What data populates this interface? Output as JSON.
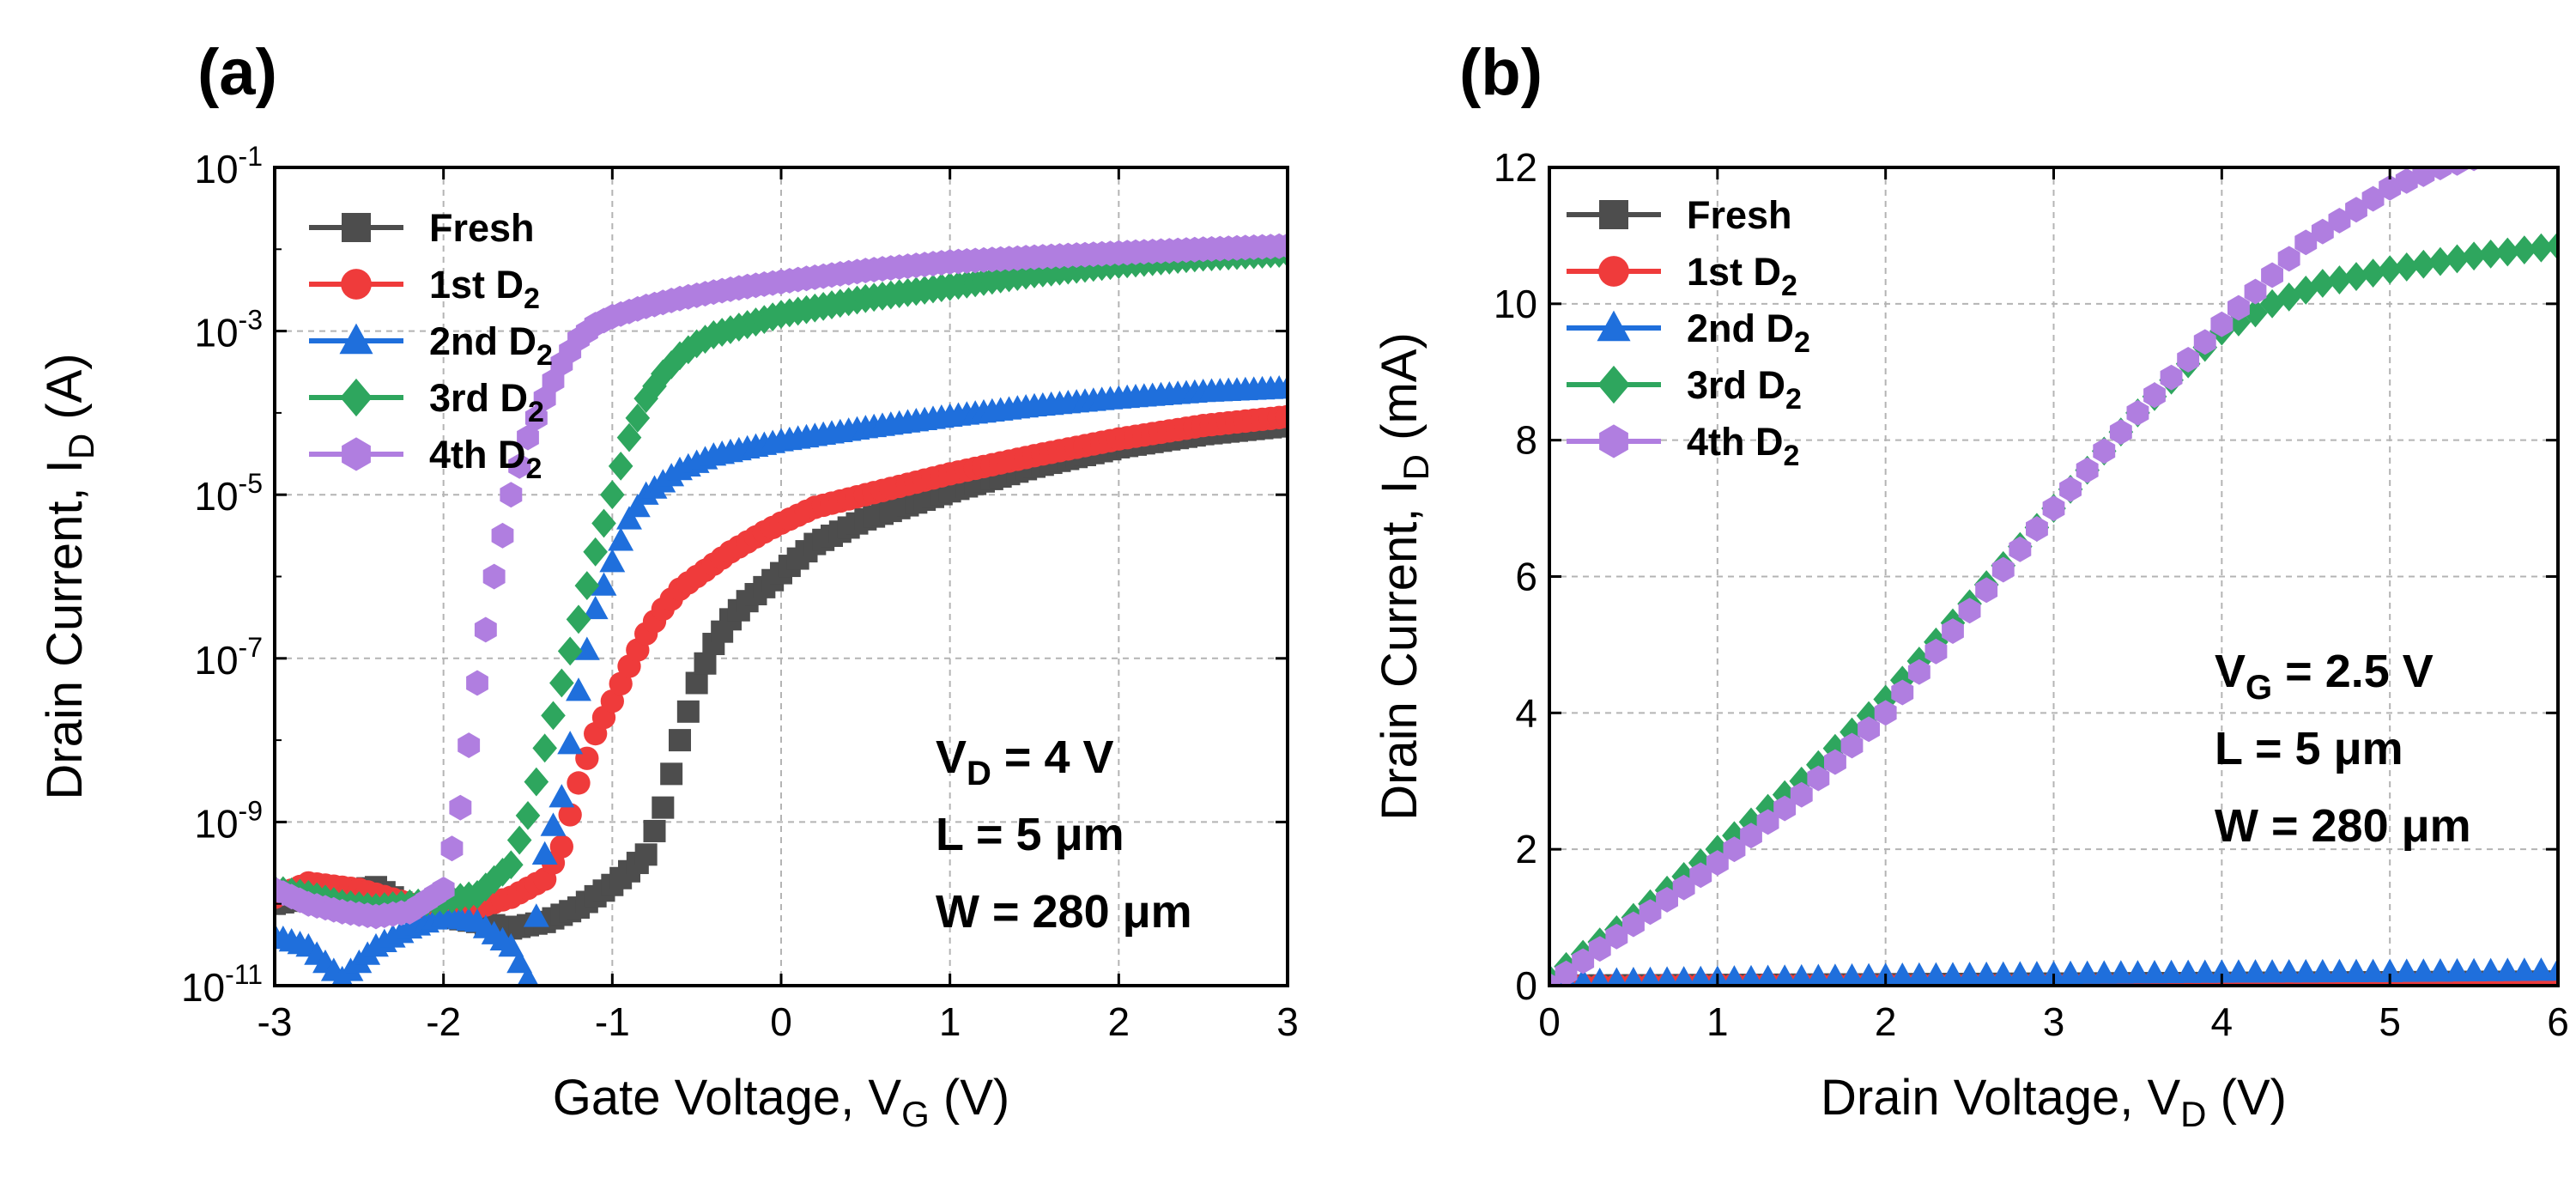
{
  "figure_labels": {
    "a": "(a)",
    "b": "(b)"
  },
  "chart_data": [
    {
      "id": "a",
      "type": "scatter",
      "title": "(a)",
      "xscale": "linear",
      "yscale": "log",
      "xlim": [
        -3,
        3
      ],
      "ylim": [
        1e-11,
        0.1
      ],
      "xticks": [
        -3,
        -2,
        -1,
        0,
        1,
        2,
        3
      ],
      "xtick_labels": [
        "-3",
        "-2",
        "-1",
        "0",
        "1",
        "2",
        "3"
      ],
      "yticks": [
        1e-11,
        1e-09,
        1e-07,
        1e-05,
        0.001,
        0.1
      ],
      "ytick_labels": [
        {
          "base": "10",
          "exp": "-11"
        },
        {
          "base": "10",
          "exp": "-9"
        },
        {
          "base": "10",
          "exp": "-7"
        },
        {
          "base": "10",
          "exp": "-5"
        },
        {
          "base": "10",
          "exp": "-3"
        },
        {
          "base": "10",
          "exp": "-1"
        }
      ],
      "xlabel": {
        "text": "Gate Voltage, V",
        "sub": "G",
        "unit": " (V)"
      },
      "ylabel": {
        "text": "Drain Current, I",
        "sub": "D",
        "unit": " (A)"
      },
      "grid": true,
      "legend_position": "top-left",
      "annotations": [
        {
          "main": "V",
          "sub": "D",
          "rest": " = 4 V"
        },
        {
          "main": "L = 5 μm",
          "sub": "",
          "rest": ""
        },
        {
          "main": "W = 280 μm",
          "sub": "",
          "rest": ""
        }
      ],
      "series": [
        {
          "name": "Fresh",
          "label": "Fresh",
          "sub": "",
          "color": "#4d4d4d",
          "marker": "square",
          "x": [
            -3.0,
            -2.6,
            -2.4,
            -2.2,
            -2.0,
            -1.8,
            -1.6,
            -1.4,
            -1.2,
            -1.0,
            -0.9,
            -0.8,
            -0.7,
            -0.6,
            -0.5,
            -0.4,
            -0.3,
            -0.2,
            0.0,
            0.2,
            0.5,
            1.0,
            1.5,
            2.0,
            2.5,
            3.0
          ],
          "y": [
            1e-10,
            1.4e-10,
            1.6e-10,
            9e-11,
            7e-11,
            6e-11,
            5e-11,
            6e-11,
            9e-11,
            1.7e-10,
            2.5e-10,
            4e-10,
            1.5e-09,
            1e-08,
            5e-08,
            1.5e-07,
            3e-07,
            5e-07,
            1.1e-06,
            2.5e-06,
            5e-06,
            1.1e-05,
            2.2e-05,
            3.8e-05,
            5.5e-05,
            7e-05
          ]
        },
        {
          "name": "1st D2",
          "label": "1st D",
          "sub": "2",
          "color": "#ef3b3b",
          "marker": "circle",
          "x": [
            -3.0,
            -2.8,
            -2.5,
            -2.2,
            -2.0,
            -1.8,
            -1.6,
            -1.4,
            -1.3,
            -1.2,
            -1.1,
            -1.0,
            -0.9,
            -0.8,
            -0.7,
            -0.6,
            -0.5,
            -0.3,
            -0.1,
            0.0,
            0.2,
            0.5,
            1.0,
            1.5,
            2.0,
            2.5,
            3.0
          ],
          "y": [
            1.2e-10,
            1.8e-10,
            1.5e-10,
            1e-10,
            8e-11,
            9e-11,
            1.2e-10,
            2e-10,
            5e-10,
            3e-09,
            1.2e-08,
            3e-08,
            8e-08,
            2e-07,
            4e-07,
            7e-07,
            1e-06,
            2e-06,
            3.5e-06,
            4.5e-06,
            7e-06,
            1e-05,
            1.8e-05,
            3e-05,
            4.8e-05,
            7e-05,
            9e-05
          ]
        },
        {
          "name": "2nd D2",
          "label": "2nd D",
          "sub": "2",
          "color": "#1f6fdc",
          "marker": "triangle",
          "x": [
            -3.0,
            -2.8,
            -2.6,
            -2.4,
            -2.2,
            -2.0,
            -1.8,
            -1.6,
            -1.5,
            -1.4,
            -1.3,
            -1.2,
            -1.1,
            -1.0,
            -0.9,
            -0.8,
            -0.6,
            -0.4,
            0.0,
            0.5,
            1.0,
            1.5,
            2.0,
            2.5,
            3.0
          ],
          "y": [
            4e-11,
            3e-11,
            1.2e-11,
            3e-11,
            5e-11,
            7e-11,
            6e-11,
            3e-11,
            1.2e-11,
            4e-10,
            2e-09,
            4e-08,
            4e-07,
            1.5e-06,
            5e-06,
            1e-05,
            2e-05,
            3e-05,
            4.5e-05,
            6.5e-05,
            9e-05,
            0.00012,
            0.00015,
            0.00018,
            0.0002
          ]
        },
        {
          "name": "3rd D2",
          "label": "3rd D",
          "sub": "2",
          "color": "#2ea65e",
          "marker": "diamond",
          "x": [
            -3.0,
            -2.8,
            -2.6,
            -2.4,
            -2.2,
            -2.0,
            -1.8,
            -1.6,
            -1.5,
            -1.4,
            -1.3,
            -1.2,
            -1.1,
            -1.0,
            -0.9,
            -0.8,
            -0.7,
            -0.6,
            -0.5,
            -0.4,
            -0.2,
            0.0,
            0.5,
            1.0,
            1.5,
            2.0,
            2.5,
            3.0
          ],
          "y": [
            1.5e-10,
            1.3e-10,
            1e-10,
            9e-11,
            1e-10,
            1.1e-10,
            1.3e-10,
            3e-10,
            1.2e-09,
            8e-09,
            5e-08,
            3e-07,
            2e-06,
            1e-05,
            5e-05,
            0.00015,
            0.0003,
            0.0005,
            0.0007,
            0.0009,
            0.0012,
            0.0016,
            0.0025,
            0.0035,
            0.005,
            0.0065,
            0.008,
            0.009
          ]
        },
        {
          "name": "4th D2",
          "label": "4th D",
          "sub": "2",
          "color": "#b07ee0",
          "marker": "hexagon",
          "x": [
            -3.0,
            -2.8,
            -2.6,
            -2.4,
            -2.2,
            -2.0,
            -1.9,
            -1.8,
            -1.7,
            -1.6,
            -1.5,
            -1.4,
            -1.3,
            -1.2,
            -1.1,
            -1.0,
            -0.8,
            -0.6,
            -0.4,
            -0.2,
            0.0,
            0.5,
            1.0,
            1.5,
            2.0,
            2.5,
            3.0
          ],
          "y": [
            1.5e-10,
            1e-10,
            8e-11,
            7e-11,
            8e-11,
            1.5e-10,
            1.5e-09,
            5e-08,
            1e-06,
            1e-05,
            5e-05,
            0.00015,
            0.0004,
            0.0008,
            0.0012,
            0.0015,
            0.002,
            0.0025,
            0.003,
            0.0035,
            0.004,
            0.0055,
            0.007,
            0.008,
            0.009,
            0.01,
            0.011
          ]
        }
      ]
    },
    {
      "id": "b",
      "type": "scatter",
      "title": "(b)",
      "xscale": "linear",
      "yscale": "linear",
      "xlim": [
        0,
        6
      ],
      "ylim": [
        0,
        12
      ],
      "xticks": [
        0,
        1,
        2,
        3,
        4,
        5,
        6
      ],
      "xtick_labels": [
        "0",
        "1",
        "2",
        "3",
        "4",
        "5",
        "6"
      ],
      "yticks": [
        0,
        2,
        4,
        6,
        8,
        10,
        12
      ],
      "ytick_labels": [
        "0",
        "2",
        "4",
        "6",
        "8",
        "10",
        "12"
      ],
      "xlabel": {
        "text": "Drain Voltage, V",
        "sub": "D",
        "unit": " (V)"
      },
      "ylabel": {
        "text": "Drain Current, I",
        "sub": "D",
        "unit": " (mA)"
      },
      "grid": true,
      "legend_position": "top-left",
      "annotations": [
        {
          "main": "V",
          "sub": "G",
          "rest": " = 2.5 V"
        },
        {
          "main": "L = 5 μm",
          "sub": "",
          "rest": ""
        },
        {
          "main": "W = 280 μm",
          "sub": "",
          "rest": ""
        }
      ],
      "series": [
        {
          "name": "Fresh",
          "label": "Fresh",
          "sub": "",
          "color": "#4d4d4d",
          "marker": "square",
          "x": [
            0,
            1,
            2,
            3,
            4,
            5,
            6
          ],
          "y": [
            0,
            0.01,
            0.02,
            0.03,
            0.04,
            0.05,
            0.06
          ]
        },
        {
          "name": "1st D2",
          "label": "1st D",
          "sub": "2",
          "color": "#ef3b3b",
          "marker": "circle",
          "x": [
            0,
            1,
            2,
            3,
            4,
            5,
            6
          ],
          "y": [
            0,
            0.02,
            0.03,
            0.04,
            0.05,
            0.06,
            0.07
          ]
        },
        {
          "name": "2nd D2",
          "label": "2nd D",
          "sub": "2",
          "color": "#1f6fdc",
          "marker": "triangle",
          "x": [
            0,
            0.5,
            1,
            2,
            3,
            4,
            5,
            6
          ],
          "y": [
            0.05,
            0.08,
            0.1,
            0.14,
            0.17,
            0.19,
            0.2,
            0.22
          ]
        },
        {
          "name": "3rd D2",
          "label": "3rd D",
          "sub": "2",
          "color": "#2ea65e",
          "marker": "diamond",
          "x": [
            0,
            0.5,
            1,
            1.5,
            2,
            2.5,
            3,
            3.5,
            4,
            4.3,
            4.6,
            5,
            5.5,
            6
          ],
          "y": [
            0.1,
            1.0,
            2.0,
            3.0,
            4.2,
            5.6,
            7.0,
            8.4,
            9.6,
            10.0,
            10.3,
            10.5,
            10.7,
            10.85
          ]
        },
        {
          "name": "4th D2",
          "label": "4th D",
          "sub": "2",
          "color": "#b07ee0",
          "marker": "hexagon",
          "x": [
            0,
            0.5,
            1,
            1.5,
            2,
            2.5,
            3,
            3.5,
            4,
            4.5,
            5,
            5.3,
            5.6
          ],
          "y": [
            0,
            0.9,
            1.8,
            2.8,
            4.0,
            5.5,
            7.0,
            8.4,
            9.7,
            10.9,
            11.7,
            12.0,
            12.2
          ]
        }
      ]
    }
  ]
}
